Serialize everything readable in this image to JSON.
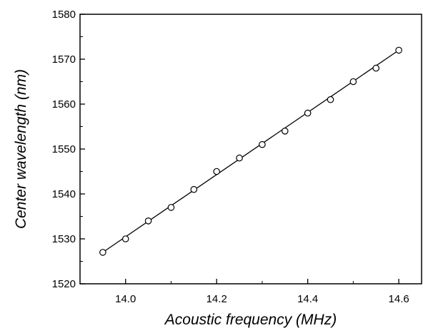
{
  "chart_data": {
    "type": "scatter",
    "title": "",
    "xlabel": "Acoustic frequency (MHz)",
    "ylabel": "Center wavelength (nm)",
    "xlim": [
      13.9,
      14.65
    ],
    "ylim": [
      1520,
      1580
    ],
    "x_ticks": [
      14.0,
      14.2,
      14.4,
      14.6
    ],
    "x_tick_labels": [
      "14.0",
      "14.2",
      "14.4",
      "14.6"
    ],
    "y_ticks": [
      1520,
      1530,
      1540,
      1550,
      1560,
      1570,
      1580
    ],
    "y_tick_labels": [
      "1520",
      "1530",
      "1540",
      "1550",
      "1560",
      "1570",
      "1580"
    ],
    "grid": false,
    "series": [
      {
        "marker": "open-circle",
        "x": [
          13.95,
          14.0,
          14.05,
          14.1,
          14.15,
          14.2,
          14.25,
          14.3,
          14.35,
          14.4,
          14.45,
          14.5,
          14.55,
          14.6
        ],
        "y": [
          1527,
          1530,
          1534,
          1537,
          1541,
          1545,
          1548,
          1551,
          1554,
          1558,
          1561,
          1565,
          1568,
          1572
        ]
      }
    ],
    "fit_line": {
      "x": [
        13.95,
        14.6
      ],
      "y": [
        1527,
        1572
      ]
    },
    "colors": {
      "axis": "#000000",
      "line": "#000000",
      "marker": "#000000"
    }
  }
}
